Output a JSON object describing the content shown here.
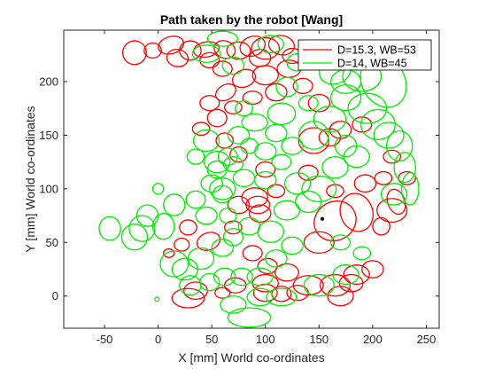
{
  "chart_data": {
    "type": "line",
    "title": "Path taken by the robot [Wang]",
    "xlabel": "X [mm] World co-ordinates",
    "ylabel": "Y [mm] World co-ordinates",
    "xlim": [
      -88,
      262
    ],
    "ylim": [
      -30,
      248
    ],
    "xticks": [
      -50,
      0,
      50,
      100,
      150,
      200,
      250
    ],
    "yticks": [
      0,
      50,
      100,
      150,
      200
    ],
    "grid": false,
    "legend_position": "top-right",
    "marker": {
      "x": 153,
      "y": 72,
      "color": "#000000"
    },
    "series": [
      {
        "name": "D=15.3, WB=53",
        "color": "#ff0000",
        "ellipses": [
          [
            -22,
            227,
            11,
            11,
            -30
          ],
          [
            -5,
            229,
            8,
            7,
            0
          ],
          [
            12,
            234,
            12,
            8,
            -15
          ],
          [
            18,
            222,
            10,
            8,
            10
          ],
          [
            30,
            229,
            10,
            9,
            0
          ],
          [
            45,
            230,
            12,
            7,
            -10
          ],
          [
            48,
            220,
            9,
            7,
            0
          ],
          [
            62,
            230,
            10,
            8,
            20
          ],
          [
            75,
            229,
            11,
            8,
            0
          ],
          [
            88,
            233,
            12,
            9,
            -20
          ],
          [
            100,
            231,
            13,
            10,
            0
          ],
          [
            115,
            234,
            12,
            9,
            10
          ],
          [
            125,
            224,
            9,
            7,
            0
          ],
          [
            95,
            222,
            10,
            8,
            0
          ],
          [
            60,
            212,
            9,
            7,
            0
          ],
          [
            80,
            203,
            11,
            8,
            -20
          ],
          [
            100,
            206,
            12,
            9,
            0
          ],
          [
            122,
            212,
            11,
            8,
            0
          ],
          [
            135,
            196,
            9,
            7,
            0
          ],
          [
            110,
            190,
            10,
            8,
            0
          ],
          [
            88,
            185,
            9,
            6,
            0
          ],
          [
            70,
            176,
            8,
            6,
            0
          ],
          [
            55,
            166,
            9,
            8,
            0
          ],
          [
            48,
            180,
            9,
            7,
            0
          ],
          [
            63,
            190,
            10,
            7,
            -30
          ],
          [
            40,
            156,
            8,
            6,
            0
          ],
          [
            62,
            145,
            8,
            7,
            0
          ],
          [
            75,
            132,
            8,
            7,
            0
          ],
          [
            100,
            118,
            9,
            7,
            0
          ],
          [
            110,
            98,
            8,
            6,
            0
          ],
          [
            90,
            92,
            12,
            9,
            0
          ],
          [
            93,
            85,
            11,
            8,
            0
          ],
          [
            95,
            77,
            10,
            8,
            0
          ],
          [
            75,
            85,
            10,
            8,
            0
          ],
          [
            70,
            64,
            8,
            6,
            0
          ],
          [
            47,
            51,
            11,
            8,
            -20
          ],
          [
            28,
            64,
            8,
            7,
            0
          ],
          [
            22,
            48,
            7,
            6,
            0
          ],
          [
            10,
            40,
            5,
            4,
            0
          ],
          [
            88,
            40,
            9,
            7,
            0
          ],
          [
            102,
            28,
            9,
            7,
            0
          ],
          [
            120,
            22,
            11,
            8,
            0
          ],
          [
            100,
            12,
            12,
            8,
            0
          ],
          [
            72,
            10,
            10,
            7,
            0
          ],
          [
            60,
            3,
            7,
            5,
            0
          ],
          [
            100,
            3,
            11,
            8,
            0
          ],
          [
            115,
            2,
            9,
            7,
            0
          ],
          [
            130,
            3,
            10,
            7,
            0
          ],
          [
            140,
            10,
            14,
            9,
            0
          ],
          [
            165,
            10,
            14,
            10,
            0
          ],
          [
            170,
            0,
            12,
            9,
            0
          ],
          [
            180,
            12,
            11,
            8,
            0
          ],
          [
            185,
            20,
            12,
            9,
            0
          ],
          [
            200,
            25,
            10,
            8,
            0
          ],
          [
            28,
            -2,
            15,
            9,
            0
          ],
          [
            35,
            5,
            11,
            8,
            0
          ],
          [
            150,
            50,
            14,
            10,
            0
          ],
          [
            165,
            70,
            20,
            18,
            -30
          ],
          [
            185,
            78,
            15,
            18,
            -20
          ],
          [
            208,
            65,
            8,
            8,
            0
          ],
          [
            193,
            105,
            10,
            8,
            0
          ],
          [
            210,
            110,
            8,
            6,
            0
          ],
          [
            222,
            88,
            8,
            12,
            -20
          ],
          [
            218,
            80,
            14,
            11,
            0
          ],
          [
            160,
            148,
            10,
            8,
            0
          ],
          [
            145,
            145,
            14,
            12,
            0
          ],
          [
            140,
            115,
            9,
            7,
            0
          ],
          [
            165,
            98,
            8,
            6,
            0
          ],
          [
            170,
            155,
            10,
            8,
            0
          ],
          [
            150,
            180,
            10,
            8,
            0
          ],
          [
            190,
            160,
            9,
            7,
            0
          ],
          [
            218,
            130,
            8,
            6,
            0
          ],
          [
            232,
            110,
            8,
            6,
            0
          ]
        ]
      },
      {
        "name": "D=14, WB=45",
        "color": "#00ee00",
        "ellipses": [
          [
            60,
            240,
            14,
            7,
            0
          ],
          [
            45,
            226,
            13,
            8,
            0
          ],
          [
            105,
            235,
            12,
            8,
            0
          ],
          [
            70,
            215,
            10,
            8,
            0
          ],
          [
            130,
            218,
            10,
            8,
            0
          ],
          [
            165,
            210,
            15,
            12,
            -20
          ],
          [
            175,
            200,
            14,
            11,
            0
          ],
          [
            190,
            205,
            18,
            14,
            0
          ],
          [
            210,
            200,
            20,
            25,
            -30
          ],
          [
            195,
            175,
            18,
            14,
            0
          ],
          [
            205,
            160,
            16,
            14,
            0
          ],
          [
            215,
            150,
            14,
            12,
            0
          ],
          [
            225,
            140,
            12,
            14,
            0
          ],
          [
            230,
            120,
            10,
            14,
            0
          ],
          [
            235,
            100,
            8,
            15,
            0
          ],
          [
            220,
            95,
            12,
            10,
            0
          ],
          [
            175,
            185,
            14,
            12,
            0
          ],
          [
            160,
            165,
            15,
            12,
            0
          ],
          [
            165,
            120,
            12,
            10,
            0
          ],
          [
            150,
            100,
            16,
            12,
            0
          ],
          [
            130,
            105,
            12,
            10,
            0
          ],
          [
            140,
            88,
            12,
            10,
            0
          ],
          [
            120,
            80,
            12,
            9,
            0
          ],
          [
            105,
            60,
            12,
            10,
            0
          ],
          [
            85,
            65,
            10,
            8,
            0
          ],
          [
            70,
            55,
            9,
            8,
            0
          ],
          [
            60,
            45,
            10,
            8,
            0
          ],
          [
            40,
            35,
            12,
            10,
            0
          ],
          [
            25,
            25,
            12,
            10,
            0
          ],
          [
            15,
            30,
            13,
            12,
            0
          ],
          [
            30,
            10,
            10,
            9,
            0
          ],
          [
            48,
            13,
            9,
            8,
            0
          ],
          [
            62,
            18,
            10,
            8,
            0
          ],
          [
            78,
            18,
            10,
            8,
            0
          ],
          [
            95,
            18,
            12,
            8,
            0
          ],
          [
            110,
            35,
            10,
            8,
            0
          ],
          [
            125,
            47,
            10,
            8,
            0
          ],
          [
            95,
            -1,
            12,
            8,
            0
          ],
          [
            70,
            -8,
            12,
            8,
            0
          ],
          [
            85,
            -20,
            20,
            9,
            0
          ],
          [
            115,
            -1,
            14,
            8,
            0
          ],
          [
            150,
            10,
            14,
            10,
            0
          ],
          [
            175,
            20,
            12,
            9,
            0
          ],
          [
            190,
            40,
            8,
            6,
            0
          ],
          [
            170,
            50,
            9,
            7,
            0
          ],
          [
            -45,
            63,
            10,
            11,
            0
          ],
          [
            -22,
            55,
            12,
            12,
            0
          ],
          [
            -10,
            75,
            10,
            10,
            0
          ],
          [
            0,
            100,
            5,
            5,
            0
          ],
          [
            -1,
            -3,
            2,
            2,
            0
          ],
          [
            -15,
            63,
            12,
            12,
            0
          ],
          [
            5,
            65,
            10,
            12,
            0
          ],
          [
            45,
            75,
            10,
            8,
            0
          ],
          [
            15,
            85,
            10,
            10,
            0
          ],
          [
            65,
            75,
            8,
            7,
            0
          ],
          [
            35,
            90,
            9,
            8,
            0
          ],
          [
            60,
            95,
            9,
            8,
            0
          ],
          [
            80,
            110,
            10,
            8,
            0
          ],
          [
            100,
            108,
            10,
            8,
            0
          ],
          [
            55,
            118,
            9,
            8,
            0
          ],
          [
            75,
            150,
            10,
            8,
            0
          ],
          [
            90,
            162,
            12,
            8,
            0
          ],
          [
            110,
            152,
            10,
            8,
            0
          ],
          [
            115,
            170,
            13,
            10,
            0
          ],
          [
            85,
            140,
            8,
            7,
            0
          ],
          [
            45,
            145,
            12,
            10,
            0
          ],
          [
            65,
            130,
            9,
            8,
            0
          ],
          [
            55,
            125,
            12,
            10,
            0
          ],
          [
            50,
            105,
            10,
            8,
            0
          ],
          [
            60,
            100,
            12,
            10,
            0
          ],
          [
            70,
            123,
            9,
            7,
            0
          ],
          [
            125,
            140,
            10,
            8,
            0
          ],
          [
            145,
            150,
            14,
            13,
            0
          ],
          [
            175,
            140,
            10,
            10,
            0
          ],
          [
            185,
            130,
            12,
            10,
            0
          ],
          [
            100,
            135,
            10,
            8,
            0
          ],
          [
            115,
            125,
            9,
            7,
            0
          ],
          [
            35,
            130,
            8,
            7,
            0
          ],
          [
            80,
            175,
            8,
            7,
            0
          ],
          [
            120,
            195,
            10,
            9,
            0
          ],
          [
            140,
            180,
            9,
            7,
            0
          ]
        ]
      }
    ]
  }
}
